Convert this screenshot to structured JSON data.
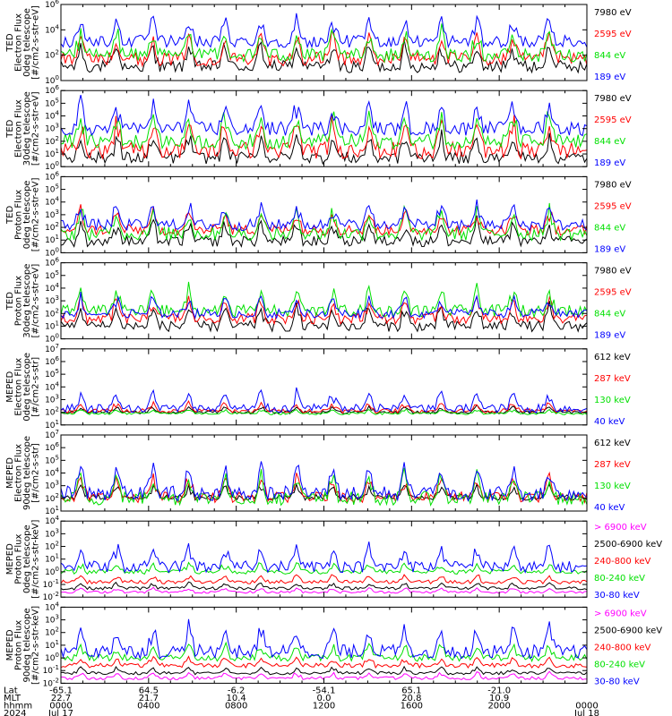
{
  "colors": {
    "blue": "#0000ff",
    "red": "#ff0000",
    "green": "#00e000",
    "black": "#000000",
    "magenta": "#ff00ff"
  },
  "chart_data": [
    {
      "type": "line",
      "ylabel": [
        "TED",
        "Electron Flux",
        "0deg telescope",
        "[#/cm2-s-str-eV]"
      ],
      "yscale": "log",
      "ylim_exp": [
        0,
        6
      ],
      "ytick_labels": [
        "10^0",
        "10^2",
        "10^4",
        "10^6"
      ],
      "series": [
        {
          "name": "7980 eV",
          "color": "#000000",
          "base": 1.1,
          "spread": 1.6
        },
        {
          "name": "2595 eV",
          "color": "#ff0000",
          "base": 1.7,
          "spread": 1.8
        },
        {
          "name": "844 eV",
          "color": "#00e000",
          "base": 2.0,
          "spread": 1.8
        },
        {
          "name": "189 eV",
          "color": "#0000ff",
          "base": 3.1,
          "spread": 1.6
        }
      ]
    },
    {
      "type": "line",
      "ylabel": [
        "TED",
        "Electron Flux",
        "30deg telescope",
        "[#/cm2-s-str-eV]"
      ],
      "yscale": "log",
      "ylim_exp": [
        0,
        6
      ],
      "ytick_labels": [
        "10^0",
        "10^1",
        "10^2",
        "10^3",
        "10^4",
        "10^5",
        "10^6"
      ],
      "series": [
        {
          "name": "7980 eV",
          "color": "#000000",
          "base": 0.7,
          "spread": 1.6
        },
        {
          "name": "2595 eV",
          "color": "#ff0000",
          "base": 1.3,
          "spread": 2.2
        },
        {
          "name": "844 eV",
          "color": "#00e000",
          "base": 2.0,
          "spread": 2.0
        },
        {
          "name": "189 eV",
          "color": "#0000ff",
          "base": 3.0,
          "spread": 1.9
        }
      ]
    },
    {
      "type": "line",
      "ylabel": [
        "TED",
        "Proton Flux",
        "0deg telescope",
        "[#/cm2-s-str-eV]"
      ],
      "yscale": "log",
      "ylim_exp": [
        0,
        6
      ],
      "ytick_labels": [
        "10^0",
        "10^1",
        "10^2",
        "10^3",
        "10^4",
        "10^5",
        "10^6"
      ],
      "series": [
        {
          "name": "7980 eV",
          "color": "#000000",
          "base": 0.9,
          "spread": 1.4
        },
        {
          "name": "2595 eV",
          "color": "#ff0000",
          "base": 1.8,
          "spread": 1.4
        },
        {
          "name": "844 eV",
          "color": "#00e000",
          "base": 1.5,
          "spread": 1.8
        },
        {
          "name": "189 eV",
          "color": "#0000ff",
          "base": 2.2,
          "spread": 1.5
        }
      ]
    },
    {
      "type": "line",
      "ylabel": [
        "TED",
        "Proton Flux",
        "30deg telescope",
        "[#/cm2-s-str-eV]"
      ],
      "yscale": "log",
      "ylim_exp": [
        0,
        6
      ],
      "ytick_labels": [
        "10^0",
        "10^1",
        "10^2",
        "10^3",
        "10^4",
        "10^5",
        "10^6"
      ],
      "series": [
        {
          "name": "7980 eV",
          "color": "#000000",
          "base": 1.0,
          "spread": 1.4
        },
        {
          "name": "2595 eV",
          "color": "#ff0000",
          "base": 1.6,
          "spread": 1.4
        },
        {
          "name": "844 eV",
          "color": "#00e000",
          "base": 2.2,
          "spread": 1.6
        },
        {
          "name": "189 eV",
          "color": "#0000ff",
          "base": 2.0,
          "spread": 1.2
        }
      ]
    },
    {
      "type": "line",
      "ylabel": [
        "MEPED",
        "Electron Flux",
        "0deg telescope",
        "[#/cm2-s-str]"
      ],
      "yscale": "log",
      "ylim_exp": [
        1,
        7
      ],
      "ytick_labels": [
        "10^1",
        "10^2",
        "10^3",
        "10^4",
        "10^5",
        "10^6",
        "10^7"
      ],
      "series": [
        {
          "name": "612 keV",
          "color": "#000000",
          "base": 2.0,
          "spread": 0.4
        },
        {
          "name": "287 keV",
          "color": "#ff0000",
          "base": 2.1,
          "spread": 0.6
        },
        {
          "name": "130 keV",
          "color": "#00e000",
          "base": 1.9,
          "spread": 0.3
        },
        {
          "name": "40 keV",
          "color": "#0000ff",
          "base": 2.3,
          "spread": 1.2
        }
      ]
    },
    {
      "type": "line",
      "ylabel": [
        "MEPED",
        "Electron Flux",
        "90deg telescope",
        "[#/cm2-s-str]"
      ],
      "yscale": "log",
      "ylim_exp": [
        1,
        7
      ],
      "ytick_labels": [
        "10^1",
        "10^2",
        "10^3",
        "10^4",
        "10^5",
        "10^6",
        "10^7"
      ],
      "series": [
        {
          "name": "612 keV",
          "color": "#000000",
          "base": 2.1,
          "spread": 0.8
        },
        {
          "name": "287 keV",
          "color": "#ff0000",
          "base": 2.1,
          "spread": 1.4
        },
        {
          "name": "130 keV",
          "color": "#00e000",
          "base": 2.0,
          "spread": 1.8
        },
        {
          "name": "40 keV",
          "color": "#0000ff",
          "base": 2.4,
          "spread": 2.0
        }
      ]
    },
    {
      "type": "line",
      "ylabel": [
        "MEPED",
        "Proton Flux",
        "0deg telescope",
        "[#/cm2-s-str-keV]"
      ],
      "yscale": "log",
      "ylim_exp": [
        -2,
        4
      ],
      "ytick_labels": [
        "10^-2",
        "10^-1",
        "10^0",
        "10^1",
        "10^2",
        "10^3",
        "10^4"
      ],
      "series": [
        {
          "name": "> 6900 keV",
          "color": "#ff00ff",
          "base": -1.6,
          "spread": 0.3
        },
        {
          "name": "2500-6900 keV",
          "color": "#000000",
          "base": -1.3,
          "spread": 0.4
        },
        {
          "name": "240-800 keV",
          "color": "#ff0000",
          "base": -0.8,
          "spread": 0.5
        },
        {
          "name": "80-240 keV",
          "color": "#00e000",
          "base": 0.0,
          "spread": 0.6
        },
        {
          "name": "30-80 keV",
          "color": "#0000ff",
          "base": 0.4,
          "spread": 1.5
        }
      ]
    },
    {
      "type": "line",
      "ylabel": [
        "MEPED",
        "Proton Flux",
        "90deg telescope",
        "[#/cm2-s-str-keV]"
      ],
      "yscale": "log",
      "ylim_exp": [
        -2,
        4
      ],
      "ytick_labels": [
        "10^-2",
        "10^-1",
        "10^0",
        "10^1",
        "10^2",
        "10^3",
        "10^4"
      ],
      "series": [
        {
          "name": "> 6900 keV",
          "color": "#ff00ff",
          "base": -1.6,
          "spread": 0.4
        },
        {
          "name": "2500-6900 keV",
          "color": "#000000",
          "base": -1.2,
          "spread": 0.4
        },
        {
          "name": "240-800 keV",
          "color": "#ff0000",
          "base": -0.6,
          "spread": 0.6
        },
        {
          "name": "80-240 keV",
          "color": "#00e000",
          "base": 0.0,
          "spread": 0.9
        },
        {
          "name": "30-80 keV",
          "color": "#0000ff",
          "base": 0.5,
          "spread": 1.8
        }
      ]
    }
  ],
  "footer": {
    "row_labels": [
      "Lat",
      "MLT",
      "hhmm",
      "2024"
    ],
    "lat": [
      "-65.1",
      "64.5",
      "-6.2",
      "-54.1",
      "65.1",
      "-21.0",
      ""
    ],
    "mlt": [
      "22.7",
      "21.7",
      "10.4",
      "0.0",
      "20.8",
      "10.9",
      ""
    ],
    "hhmm": [
      "0000",
      "0400",
      "0800",
      "1200",
      "1600",
      "2000",
      "0000"
    ],
    "date": [
      "Jul 17",
      "",
      "",
      "",
      "",
      "",
      "Jul 18"
    ]
  }
}
